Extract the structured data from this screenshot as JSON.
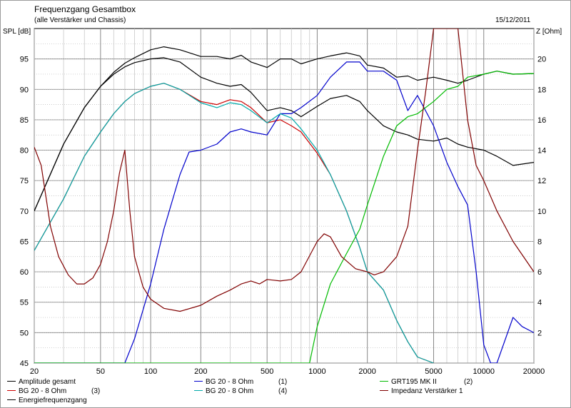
{
  "title": "Frequenzgang Gesamtbox",
  "subtitle": "(alle Verstärker und Chassis)",
  "date": "15/12/2011",
  "chart_data": {
    "type": "line",
    "title": "Frequenzgang Gesamtbox",
    "subtitle": "(alle Verstärker und Chassis)",
    "x_scale": "log",
    "xlim": [
      20,
      20000
    ],
    "x_ticks": [
      20,
      50,
      100,
      200,
      500,
      1000,
      2000,
      5000,
      10000,
      20000
    ],
    "x_tick_labels": [
      "20",
      "50",
      "100",
      "200",
      "500",
      "1000",
      "2000",
      "5000",
      "10000",
      "20000"
    ],
    "ylabel": "SPL [dB]",
    "ylim": [
      45,
      100
    ],
    "y_ticks": [
      45,
      50,
      55,
      60,
      65,
      70,
      75,
      80,
      85,
      90,
      95
    ],
    "y2label": "Z [Ohm]",
    "y2lim": [
      0,
      22
    ],
    "y2_ticks": [
      2,
      4,
      6,
      8,
      10,
      12,
      14,
      16,
      18,
      20
    ],
    "grid": true,
    "legend_position": "bottom",
    "series": [
      {
        "name": "Amplitude gesamt",
        "axis": "left",
        "color": "#000000",
        "x": [
          20,
          30,
          40,
          50,
          60,
          70,
          80,
          100,
          120,
          150,
          200,
          250,
          300,
          350,
          400,
          500,
          600,
          700,
          800,
          1000,
          1200,
          1500,
          1800,
          2000,
          2500,
          3000,
          3500,
          4000,
          5000,
          6000,
          7000,
          8000,
          10000,
          12000,
          15000,
          20000
        ],
        "y": [
          70,
          81,
          87,
          90.5,
          92.8,
          94.3,
          95.2,
          96.5,
          97,
          96.5,
          95.4,
          95.4,
          95,
          95.6,
          94.5,
          93.6,
          95,
          95,
          94.2,
          95,
          95.5,
          96,
          95.5,
          94,
          93.5,
          92,
          92.2,
          91.5,
          92,
          91.5,
          91,
          91.5,
          92.5,
          93,
          92.5,
          92.6
        ]
      },
      {
        "name": "BG 20 - 8 Ohm",
        "label": "(3)",
        "axis": "left",
        "color": "#cc0000",
        "x": [
          20,
          30,
          40,
          50,
          60,
          70,
          80,
          100,
          120,
          150,
          200,
          250,
          300,
          350,
          400,
          500,
          600,
          700,
          800,
          1000,
          1200,
          1500,
          1800,
          2000,
          2500,
          3000,
          3500,
          4000,
          5000
        ],
        "y": [
          63.5,
          72,
          79,
          83,
          86,
          88,
          89.3,
          90.5,
          91,
          90,
          88,
          87.5,
          88.3,
          88,
          87,
          84.5,
          85,
          84,
          83,
          79.5,
          76,
          70,
          64,
          60,
          57,
          52,
          48.5,
          46,
          45
        ]
      },
      {
        "name": "Energiefrequenzgang",
        "axis": "left",
        "color": "#000000",
        "x": [
          20,
          30,
          40,
          50,
          60,
          70,
          80,
          100,
          120,
          150,
          200,
          250,
          300,
          350,
          400,
          500,
          600,
          700,
          800,
          1000,
          1200,
          1500,
          1800,
          2000,
          2500,
          3000,
          3500,
          4000,
          5000,
          6000,
          7000,
          8000,
          10000,
          12000,
          15000,
          20000
        ],
        "y": [
          70,
          81,
          87,
          90.5,
          92.5,
          93.7,
          94.4,
          95,
          95.2,
          94.5,
          92,
          91,
          90.5,
          90.8,
          89.5,
          86.5,
          87,
          86.5,
          85.5,
          87.2,
          88.5,
          89,
          88,
          86.5,
          84,
          83,
          82.5,
          81.8,
          81.5,
          82,
          81,
          80.5,
          80,
          79,
          77.5,
          78
        ]
      },
      {
        "name": "BG 20 - 8 Ohm",
        "label": "(1)",
        "axis": "left",
        "color": "#0000cc",
        "x": [
          20,
          60,
          70,
          80,
          100,
          120,
          150,
          170,
          200,
          250,
          300,
          350,
          400,
          500,
          600,
          700,
          800,
          1000,
          1200,
          1500,
          1800,
          2000,
          2500,
          3000,
          3500,
          4000,
          5000,
          6000,
          7000,
          8000,
          9000,
          10000,
          11000,
          12000,
          15000,
          17000,
          20000
        ],
        "y": [
          45,
          45,
          45,
          49,
          58,
          67,
          76,
          79.7,
          80,
          81,
          83,
          83.5,
          83,
          82.5,
          86,
          86,
          87,
          89,
          92,
          94.5,
          94.5,
          93,
          93,
          91.5,
          86.5,
          89,
          84,
          78,
          74,
          71,
          60,
          48,
          45,
          45,
          52.5,
          51,
          50
        ]
      },
      {
        "name": "BG 20 - 8 Ohm",
        "label": "(4)",
        "axis": "left",
        "color": "#00aaaa",
        "x": [
          20,
          30,
          40,
          50,
          60,
          70,
          80,
          100,
          120,
          150,
          200,
          250,
          300,
          350,
          400,
          500,
          600,
          700,
          800,
          1000,
          1200,
          1500,
          1800,
          2000,
          2500,
          3000,
          3500,
          4000,
          5000
        ],
        "y": [
          63.5,
          72,
          79,
          83,
          86,
          88,
          89.3,
          90.5,
          91,
          90,
          87.8,
          87,
          87.8,
          87.5,
          86.5,
          84.5,
          86,
          85.3,
          83.5,
          80,
          76,
          70,
          64,
          60,
          57,
          52,
          48.5,
          46,
          45
        ]
      },
      {
        "name": "GRT195 MK II",
        "label": "(2)",
        "axis": "left",
        "color": "#00bb00",
        "x": [
          20,
          800,
          900,
          1000,
          1200,
          1500,
          1800,
          2000,
          2500,
          3000,
          3500,
          4000,
          5000,
          6000,
          7000,
          8000,
          10000,
          12000,
          15000,
          20000
        ],
        "y": [
          45,
          45,
          45,
          51,
          58,
          63,
          67,
          71,
          79,
          84,
          85.5,
          86,
          88,
          90,
          90.5,
          92,
          92.5,
          93,
          92.5,
          92.6
        ]
      },
      {
        "name": "Impedanz Verstärker 1",
        "axis": "right",
        "color": "#800000",
        "x": [
          20,
          22,
          25,
          28,
          32,
          36,
          40,
          45,
          50,
          55,
          60,
          65,
          70,
          75,
          80,
          90,
          100,
          120,
          150,
          200,
          250,
          300,
          350,
          400,
          450,
          500,
          600,
          700,
          800,
          1000,
          1100,
          1200,
          1400,
          1700,
          2000,
          2200,
          2500,
          3000,
          3500,
          4000,
          4500,
          5000,
          5500,
          6000,
          7000,
          8000,
          9000,
          10000,
          12000,
          15000,
          20000
        ],
        "y": [
          14.2,
          13,
          9,
          7,
          5.8,
          5.2,
          5.2,
          5.6,
          6.5,
          8,
          10,
          12.5,
          14,
          10,
          7,
          5,
          4.2,
          3.6,
          3.4,
          3.8,
          4.4,
          4.8,
          5.2,
          5.4,
          5.2,
          5.5,
          5.4,
          5.5,
          6,
          8,
          8.5,
          8.3,
          7,
          6.2,
          6,
          5.8,
          6,
          7,
          9,
          14,
          18,
          22,
          22,
          22,
          22,
          16,
          13,
          12,
          10,
          8,
          6
        ]
      }
    ]
  },
  "legend": [
    {
      "name": "Amplitude gesamt",
      "num": "",
      "color": "#000000"
    },
    {
      "name": "BG 20 - 8 Ohm",
      "num": "(3)",
      "color": "#cc0000"
    },
    {
      "name": "Energiefrequenzgang",
      "num": "",
      "color": "#000000"
    },
    {
      "name": "BG 20 - 8 Ohm",
      "num": "(1)",
      "color": "#0000cc"
    },
    {
      "name": "BG 20 - 8 Ohm",
      "num": "(4)",
      "color": "#00aaaa"
    },
    {
      "name": "GRT195 MK II",
      "num": "(2)",
      "color": "#00bb00"
    },
    {
      "name": "Impedanz Verstärker 1",
      "num": "",
      "color": "#800000"
    }
  ]
}
